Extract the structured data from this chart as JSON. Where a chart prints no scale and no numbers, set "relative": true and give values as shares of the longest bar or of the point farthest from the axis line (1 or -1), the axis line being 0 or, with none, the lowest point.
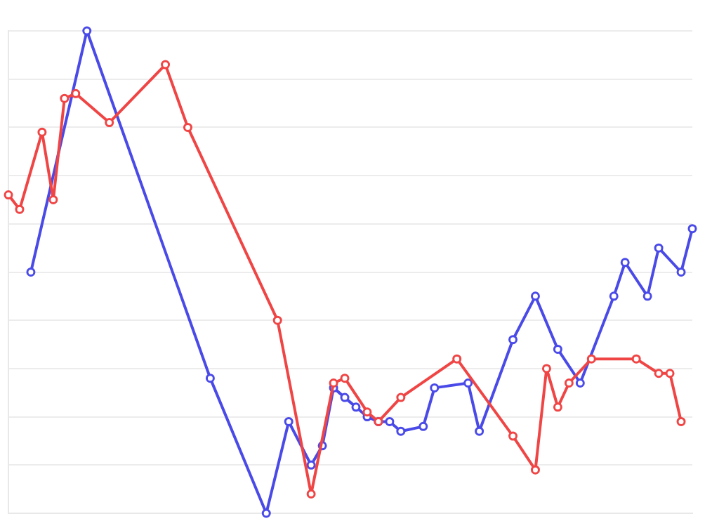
{
  "chart_data": {
    "type": "line",
    "relative": true,
    "grid": "y",
    "legend": false,
    "tick_labels": false,
    "marker": "circle",
    "line_style": "solid",
    "categories": [
      null,
      null,
      null,
      null,
      null,
      null,
      null,
      null,
      null,
      null,
      null,
      null,
      null,
      null,
      null,
      null,
      null,
      null,
      null,
      null,
      null,
      null,
      null,
      null,
      null,
      null,
      null,
      null,
      null,
      null,
      null,
      null,
      null,
      null,
      null,
      null,
      null,
      null,
      null,
      null,
      null,
      null,
      null,
      null,
      null,
      null,
      null,
      null,
      null,
      null,
      null,
      null,
      null,
      null,
      null,
      null,
      null,
      null,
      null,
      null,
      null,
      null
    ],
    "series": [
      {
        "color": "#f04545",
        "values": [
          0.66,
          0.63,
          null,
          0.79,
          0.65,
          0.86,
          0.87,
          null,
          null,
          0.81,
          null,
          null,
          null,
          null,
          0.93,
          null,
          0.8,
          null,
          null,
          null,
          null,
          null,
          null,
          null,
          0.4,
          null,
          null,
          0.04,
          null,
          0.27,
          0.28,
          null,
          0.21,
          0.19,
          null,
          0.24,
          null,
          null,
          null,
          null,
          0.32,
          null,
          null,
          null,
          null,
          0.16,
          null,
          0.09,
          0.3,
          0.22,
          0.27,
          null,
          0.32,
          null,
          null,
          null,
          0.32,
          null,
          0.29,
          0.29,
          0.19,
          null
        ]
      },
      {
        "color": "#4a4ae8",
        "values": [
          null,
          null,
          0.5,
          null,
          null,
          null,
          null,
          1,
          null,
          null,
          null,
          null,
          null,
          null,
          null,
          null,
          null,
          null,
          0.28,
          null,
          null,
          null,
          null,
          0,
          null,
          0.19,
          null,
          0.1,
          0.14,
          0.26,
          0.24,
          0.22,
          0.2,
          0.19,
          0.19,
          0.17,
          null,
          0.18,
          0.26,
          null,
          null,
          0.27,
          0.17,
          null,
          null,
          0.36,
          null,
          0.45,
          null,
          0.34,
          null,
          0.27,
          null,
          null,
          0.45,
          0.52,
          null,
          0.45,
          0.55,
          null,
          0.5,
          0.59
        ]
      }
    ]
  }
}
